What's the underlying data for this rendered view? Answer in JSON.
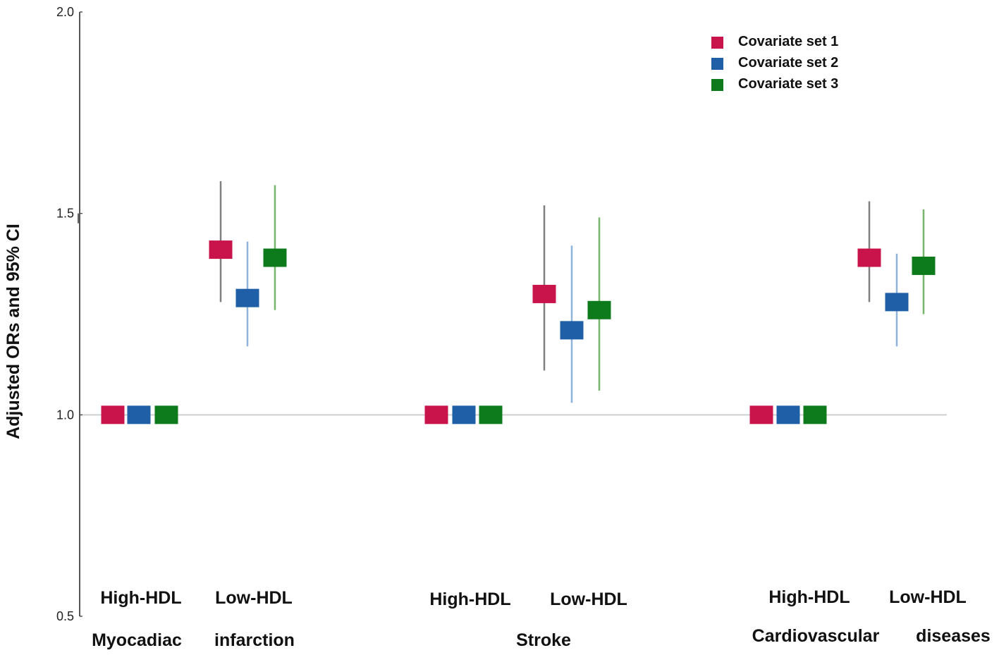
{
  "chart_data": {
    "type": "forest",
    "title": "",
    "xlabel": "",
    "ylabel": "Adjusted  ORs and 95% CI",
    "ylim": [
      0.5,
      2.0
    ],
    "yticks": [
      "0.5",
      "1.0",
      "1.5",
      "2.0"
    ],
    "reference_line": 1.0,
    "legend_position": "top-right",
    "series": [
      {
        "name": "Covariate set 1",
        "color": "#C8134B",
        "whisker_color": "#808080"
      },
      {
        "name": "Covariate set 2",
        "color": "#1F5FA8",
        "whisker_color": "#8FB3DB"
      },
      {
        "name": "Covariate set 3",
        "color": "#0D7A1C",
        "whisker_color": "#78B66E"
      }
    ],
    "groups": [
      {
        "outcome": "Myocadiac  infarction",
        "outcome_words": [
          "Myocadiac",
          "infarction"
        ],
        "subgroups": [
          {
            "label": "High-HDL",
            "values": [
              {
                "or": 1.0,
                "lo": 1.0,
                "hi": 1.0
              },
              {
                "or": 1.0,
                "lo": 1.0,
                "hi": 1.0
              },
              {
                "or": 1.0,
                "lo": 1.0,
                "hi": 1.0
              }
            ]
          },
          {
            "label": "Low-HDL",
            "values": [
              {
                "or": 1.41,
                "lo": 1.28,
                "hi": 1.58
              },
              {
                "or": 1.29,
                "lo": 1.17,
                "hi": 1.43
              },
              {
                "or": 1.39,
                "lo": 1.26,
                "hi": 1.57
              }
            ]
          }
        ]
      },
      {
        "outcome": "Stroke",
        "outcome_words": [
          "Stroke"
        ],
        "subgroups": [
          {
            "label": "High-HDL",
            "values": [
              {
                "or": 1.0,
                "lo": 1.0,
                "hi": 1.0
              },
              {
                "or": 1.0,
                "lo": 1.0,
                "hi": 1.0
              },
              {
                "or": 1.0,
                "lo": 1.0,
                "hi": 1.0
              }
            ]
          },
          {
            "label": "Low-HDL",
            "values": [
              {
                "or": 1.3,
                "lo": 1.11,
                "hi": 1.52
              },
              {
                "or": 1.21,
                "lo": 1.03,
                "hi": 1.42
              },
              {
                "or": 1.26,
                "lo": 1.06,
                "hi": 1.49
              }
            ]
          }
        ]
      },
      {
        "outcome": "Cardiovascular  diseases",
        "outcome_words": [
          "Cardiovascular",
          "diseases"
        ],
        "subgroups": [
          {
            "label": "High-HDL",
            "values": [
              {
                "or": 1.0,
                "lo": 1.0,
                "hi": 1.0
              },
              {
                "or": 1.0,
                "lo": 1.0,
                "hi": 1.0
              },
              {
                "or": 1.0,
                "lo": 1.0,
                "hi": 1.0
              }
            ]
          },
          {
            "label": "Low-HDL",
            "values": [
              {
                "or": 1.39,
                "lo": 1.28,
                "hi": 1.53
              },
              {
                "or": 1.28,
                "lo": 1.17,
                "hi": 1.4
              },
              {
                "or": 1.37,
                "lo": 1.25,
                "hi": 1.51
              }
            ]
          }
        ]
      }
    ]
  }
}
